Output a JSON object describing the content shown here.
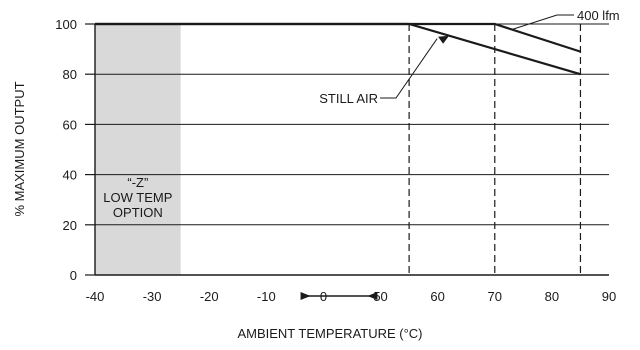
{
  "chart_data": {
    "type": "line",
    "title": "",
    "xlabel": "AMBIENT TEMPERATURE (°C)",
    "ylabel": "% MAXIMUM OUTPUT",
    "xlim": [
      -40,
      90
    ],
    "ylim": [
      0,
      100
    ],
    "x_ticks": [
      "-40",
      "-30",
      "-20",
      "-10",
      "0",
      "50",
      "60",
      "70",
      "80",
      "90"
    ],
    "y_ticks": [
      "0",
      "20",
      "40",
      "60",
      "80",
      "100"
    ],
    "axis_break_between": [
      0,
      50
    ],
    "grid": "horizontal",
    "series": [
      {
        "name": "STILL AIR",
        "x": [
          -40,
          55,
          85
        ],
        "y": [
          100,
          100,
          80
        ]
      },
      {
        "name": "400 lfm",
        "x": [
          -40,
          70,
          85
        ],
        "y": [
          100,
          100,
          89
        ]
      }
    ],
    "shaded_region": {
      "x": [
        -40,
        -25
      ],
      "label_lines": [
        "“-Z”",
        "LOW TEMP",
        "OPTION"
      ],
      "color": "#d9d9d9"
    },
    "guide_lines_x": [
      55,
      70,
      85
    ],
    "colors": {
      "line": "#1a1a1a",
      "shade": "#d9d9d9",
      "grid": "#1a1a1a"
    }
  }
}
